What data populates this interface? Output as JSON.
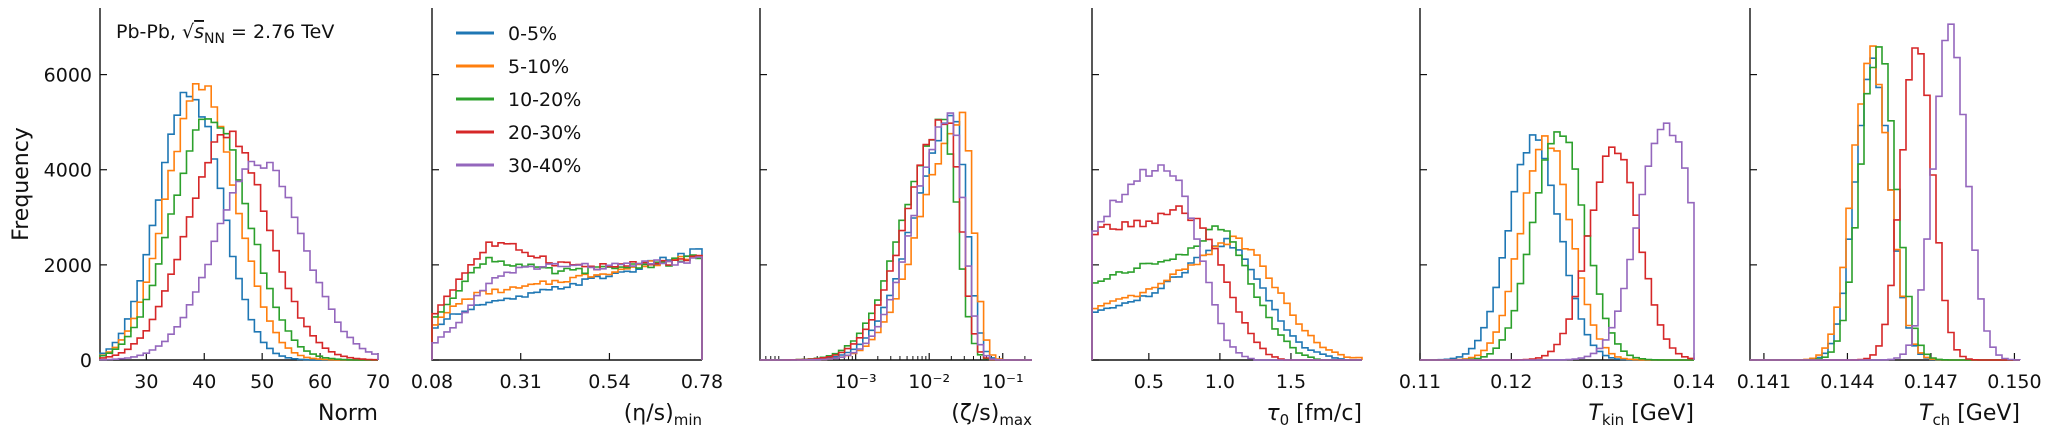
{
  "chart_data": {
    "type": "histogram",
    "ylabel": "Frequency",
    "y_ticks": [
      "0",
      "2000",
      "4000",
      "6000"
    ],
    "ylim": [
      0,
      7400
    ],
    "annotation": "Pb-Pb, √sNN = 2.76 TeV",
    "legend": {
      "placement": "upper-left of panel 2",
      "entries": [
        {
          "label": "0-5%",
          "color": "#1f77b4"
        },
        {
          "label": "5-10%",
          "color": "#ff7f0e"
        },
        {
          "label": "10-20%",
          "color": "#2ca02c"
        },
        {
          "label": "20-30%",
          "color": "#d62728"
        },
        {
          "label": "30-40%",
          "color": "#9467bd"
        }
      ]
    },
    "panels": [
      {
        "xlabel": "Norm",
        "xscale": "linear",
        "xlim": [
          22,
          70
        ],
        "x_ticks": [
          {
            "v": 30,
            "label": "30"
          },
          {
            "v": 40,
            "label": "40"
          },
          {
            "v": 50,
            "label": "50"
          },
          {
            "v": 60,
            "label": "60"
          },
          {
            "v": 70,
            "label": "70"
          }
        ],
        "series": [
          {
            "name": "0-5%",
            "type": "gauss",
            "center": 37.5,
            "sigma": 5.5,
            "peak": 5600
          },
          {
            "name": "5-10%",
            "type": "gauss",
            "center": 39.5,
            "sigma": 6.0,
            "peak": 5700
          },
          {
            "name": "10-20%",
            "type": "gauss",
            "center": 41,
            "sigma": 6.5,
            "peak": 5200
          },
          {
            "name": "20-30%",
            "type": "gauss",
            "center": 44,
            "sigma": 7.0,
            "peak": 4700
          },
          {
            "name": "30-40%",
            "type": "gauss",
            "center": 49.5,
            "sigma": 7.5,
            "peak": 4150
          }
        ]
      },
      {
        "xlabel": "(η/s)min",
        "xscale": "linear",
        "xlim": [
          0.08,
          0.78
        ],
        "x_ticks": [
          {
            "v": 0.08,
            "label": "0.08"
          },
          {
            "v": 0.31,
            "label": "0.31"
          },
          {
            "v": 0.54,
            "label": "0.54"
          },
          {
            "v": 0.78,
            "label": "0.78"
          }
        ],
        "series": [
          {
            "name": "0-5%",
            "type": "pts",
            "points": [
              [
                0.08,
                600
              ],
              [
                0.12,
                900
              ],
              [
                0.2,
                1150
              ],
              [
                0.3,
                1300
              ],
              [
                0.4,
                1500
              ],
              [
                0.5,
                1700
              ],
              [
                0.6,
                1900
              ],
              [
                0.7,
                2150
              ],
              [
                0.78,
                2300
              ]
            ]
          },
          {
            "name": "5-10%",
            "type": "pts",
            "points": [
              [
                0.08,
                700
              ],
              [
                0.14,
                1150
              ],
              [
                0.2,
                1400
              ],
              [
                0.3,
                1500
              ],
              [
                0.4,
                1650
              ],
              [
                0.5,
                1800
              ],
              [
                0.6,
                1950
              ],
              [
                0.7,
                2100
              ],
              [
                0.78,
                2250
              ]
            ]
          },
          {
            "name": "10-20%",
            "type": "pts",
            "points": [
              [
                0.08,
                800
              ],
              [
                0.15,
                1500
              ],
              [
                0.22,
                2150
              ],
              [
                0.3,
                2000
              ],
              [
                0.4,
                1850
              ],
              [
                0.5,
                1900
              ],
              [
                0.6,
                1980
              ],
              [
                0.7,
                2050
              ],
              [
                0.78,
                2200
              ]
            ]
          },
          {
            "name": "20-30%",
            "type": "pts",
            "points": [
              [
                0.08,
                900
              ],
              [
                0.16,
                1800
              ],
              [
                0.23,
                2450
              ],
              [
                0.3,
                2350
              ],
              [
                0.4,
                2050
              ],
              [
                0.5,
                1950
              ],
              [
                0.6,
                2000
              ],
              [
                0.7,
                2050
              ],
              [
                0.78,
                2150
              ]
            ]
          },
          {
            "name": "30-40%",
            "type": "pts",
            "points": [
              [
                0.08,
                300
              ],
              [
                0.15,
                800
              ],
              [
                0.22,
                1600
              ],
              [
                0.3,
                1900
              ],
              [
                0.4,
                2000
              ],
              [
                0.5,
                1950
              ],
              [
                0.6,
                2000
              ],
              [
                0.7,
                2050
              ],
              [
                0.78,
                2100
              ]
            ]
          }
        ]
      },
      {
        "xlabel": "(ζ/s)max",
        "xscale": "log",
        "xlim": [
          5e-05,
          0.25
        ],
        "x_ticks": [
          {
            "v": 0.001,
            "label": "10⁻³"
          },
          {
            "v": 0.01,
            "label": "10⁻²"
          },
          {
            "v": 0.1,
            "label": "10⁻¹"
          }
        ],
        "series": [
          {
            "name": "0-5%",
            "type": "logskew",
            "mode": 0.022,
            "sl": 0.55,
            "sr": 0.17,
            "peak": 5000
          },
          {
            "name": "5-10%",
            "type": "logskew",
            "mode": 0.028,
            "sl": 0.55,
            "sr": 0.15,
            "peak": 5050
          },
          {
            "name": "10-20%",
            "type": "logskew",
            "mode": 0.016,
            "sl": 0.55,
            "sr": 0.18,
            "peak": 5000
          },
          {
            "name": "20-30%",
            "type": "logskew",
            "mode": 0.018,
            "sl": 0.55,
            "sr": 0.17,
            "peak": 5150
          },
          {
            "name": "30-40%",
            "type": "logskew",
            "mode": 0.02,
            "sl": 0.5,
            "sr": 0.17,
            "peak": 5100
          }
        ]
      },
      {
        "xlabel": "τ0 [fm/c]",
        "xscale": "linear",
        "xlim": [
          0.1,
          2.0
        ],
        "x_ticks": [
          {
            "v": 0.5,
            "label": "0.5"
          },
          {
            "v": 1.0,
            "label": "1.0"
          },
          {
            "v": 1.5,
            "label": "1.5"
          }
        ],
        "series": [
          {
            "name": "0-5%",
            "type": "pts",
            "points": [
              [
                0.1,
                1000
              ],
              [
                0.3,
                1150
              ],
              [
                0.5,
                1350
              ],
              [
                0.7,
                1750
              ],
              [
                0.9,
                2250
              ],
              [
                1.05,
                2500
              ],
              [
                1.15,
                2300
              ],
              [
                1.3,
                1500
              ],
              [
                1.45,
                700
              ],
              [
                1.6,
                250
              ],
              [
                1.8,
                50
              ],
              [
                1.9,
                0
              ]
            ]
          },
          {
            "name": "5-10%",
            "type": "pts",
            "points": [
              [
                0.1,
                1050
              ],
              [
                0.3,
                1250
              ],
              [
                0.5,
                1450
              ],
              [
                0.7,
                1800
              ],
              [
                0.9,
                2200
              ],
              [
                1.1,
                2600
              ],
              [
                1.25,
                2250
              ],
              [
                1.4,
                1500
              ],
              [
                1.55,
                800
              ],
              [
                1.7,
                300
              ],
              [
                1.9,
                50
              ]
            ]
          },
          {
            "name": "10-20%",
            "type": "pts",
            "points": [
              [
                0.1,
                1600
              ],
              [
                0.3,
                1850
              ],
              [
                0.5,
                2000
              ],
              [
                0.7,
                2150
              ],
              [
                0.9,
                2600
              ],
              [
                0.98,
                2800
              ],
              [
                1.1,
                2500
              ],
              [
                1.25,
                1400
              ],
              [
                1.4,
                600
              ],
              [
                1.55,
                150
              ],
              [
                1.7,
                0
              ]
            ]
          },
          {
            "name": "20-30%",
            "type": "pts",
            "points": [
              [
                0.1,
                2600
              ],
              [
                0.2,
                2800
              ],
              [
                0.4,
                2850
              ],
              [
                0.55,
                2950
              ],
              [
                0.7,
                3150
              ],
              [
                0.85,
                2900
              ],
              [
                0.95,
                2400
              ],
              [
                1.05,
                1600
              ],
              [
                1.15,
                900
              ],
              [
                1.25,
                400
              ],
              [
                1.35,
                100
              ],
              [
                1.45,
                0
              ]
            ]
          },
          {
            "name": "30-40%",
            "type": "pts",
            "points": [
              [
                0.1,
                2700
              ],
              [
                0.25,
                3300
              ],
              [
                0.4,
                3800
              ],
              [
                0.55,
                4050
              ],
              [
                0.65,
                4050
              ],
              [
                0.75,
                3550
              ],
              [
                0.85,
                2500
              ],
              [
                0.95,
                1300
              ],
              [
                1.05,
                400
              ],
              [
                1.15,
                100
              ],
              [
                1.25,
                0
              ]
            ]
          }
        ]
      },
      {
        "xlabel": "Tkin [GeV]",
        "xscale": "linear",
        "xlim": [
          0.11,
          0.14
        ],
        "x_ticks": [
          {
            "v": 0.11,
            "label": "0.11"
          },
          {
            "v": 0.12,
            "label": "0.12"
          },
          {
            "v": 0.13,
            "label": "0.13"
          },
          {
            "v": 0.14,
            "label": "0.14"
          }
        ],
        "series": [
          {
            "name": "0-5%",
            "type": "gauss",
            "center": 0.1225,
            "sigma": 0.0028,
            "peak": 4650
          },
          {
            "name": "5-10%",
            "type": "gauss",
            "center": 0.1238,
            "sigma": 0.0027,
            "peak": 4700
          },
          {
            "name": "10-20%",
            "type": "gauss",
            "center": 0.1252,
            "sigma": 0.0028,
            "peak": 4850
          },
          {
            "name": "20-30%",
            "type": "gauss",
            "center": 0.1312,
            "sigma": 0.0027,
            "peak": 4500
          },
          {
            "name": "30-40%",
            "type": "gauss",
            "center": 0.137,
            "sigma": 0.003,
            "peak": 5000,
            "cutoff": 0.14
          }
        ]
      },
      {
        "xlabel": "Tch [GeV]",
        "xscale": "linear",
        "xlim": [
          0.1405,
          0.1502
        ],
        "x_ticks": [
          {
            "v": 0.141,
            "label": "0.141"
          },
          {
            "v": 0.144,
            "label": "0.144"
          },
          {
            "v": 0.147,
            "label": "0.147"
          },
          {
            "v": 0.15,
            "label": "0.150"
          }
        ],
        "series": [
          {
            "name": "0-5%",
            "type": "gauss",
            "center": 0.1449,
            "sigma": 0.00062,
            "peak": 6200
          },
          {
            "name": "5-10%",
            "type": "gauss",
            "center": 0.14485,
            "sigma": 0.00065,
            "peak": 6500
          },
          {
            "name": "10-20%",
            "type": "gauss",
            "center": 0.1451,
            "sigma": 0.00062,
            "peak": 6650
          },
          {
            "name": "20-30%",
            "type": "gauss",
            "center": 0.1465,
            "sigma": 0.00055,
            "peak": 6700
          },
          {
            "name": "30-40%",
            "type": "gauss",
            "center": 0.1477,
            "sigma": 0.0006,
            "peak": 6950
          }
        ]
      }
    ]
  }
}
